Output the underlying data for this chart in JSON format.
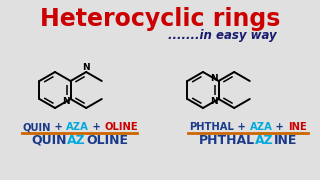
{
  "bg_color": "#e0e0e0",
  "title": "Heterocyclic rings",
  "title_color": "#cc0000",
  "subtitle": ".......in easy way",
  "subtitle_color": "#1a1a6e",
  "left_label_parts": [
    [
      "QUIN",
      "#1a3a8a"
    ],
    [
      " + ",
      "#1a3a8a"
    ],
    [
      "AZA",
      "#00aadd"
    ],
    [
      " + ",
      "#1a3a8a"
    ],
    [
      "OLINE",
      "#cc0000"
    ]
  ],
  "left_name_parts": [
    [
      "QUIN",
      "#1a3a8a"
    ],
    [
      "AZ",
      "#00aadd"
    ],
    [
      "OLINE",
      "#1a3a8a"
    ]
  ],
  "right_label_parts": [
    [
      "PHTHAL",
      "#1a3a8a"
    ],
    [
      " + ",
      "#1a3a8a"
    ],
    [
      "AZA",
      "#00aadd"
    ],
    [
      " + ",
      "#1a3a8a"
    ],
    [
      "INE",
      "#cc0000"
    ]
  ],
  "right_name_parts": [
    [
      "PHTHAL",
      "#1a3a8a"
    ],
    [
      "AZ",
      "#00aadd"
    ],
    [
      "INE",
      "#1a3a8a"
    ]
  ],
  "line_color": "#cc6600"
}
